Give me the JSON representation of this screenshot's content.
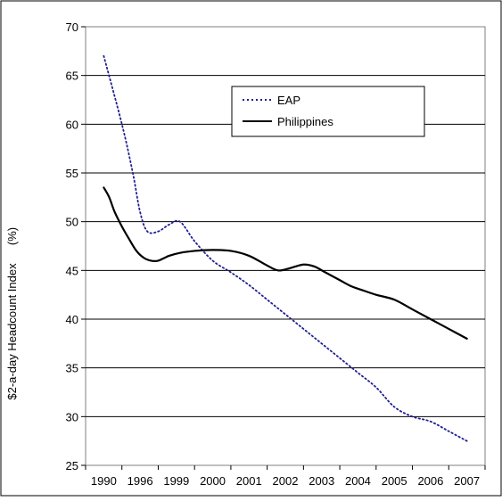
{
  "chart_data": {
    "type": "line",
    "title": "",
    "xlabel": "",
    "ylabel": "$2-a-day Headcount Index",
    "yunit": "(%)",
    "ylim": [
      25,
      70
    ],
    "yticks": [
      "25",
      "30",
      "35",
      "40",
      "45",
      "50",
      "55",
      "60",
      "65",
      "70"
    ],
    "categories": [
      "1990",
      "1996",
      "1999",
      "2000",
      "2001",
      "2002",
      "2003",
      "2004",
      "2005",
      "2006",
      "2007"
    ],
    "grid": "horizontal",
    "legend_position": "top-right",
    "series": [
      {
        "name": "EAP",
        "style": "dotted",
        "color": "#1f1f8f",
        "x": [
          0.5,
          1.0,
          1.3,
          1.5,
          1.7,
          2.0,
          2.3,
          2.6,
          3.0,
          3.5,
          4.0,
          4.5,
          5.0,
          5.5,
          6.0,
          6.5,
          7.0,
          7.5,
          8.0,
          8.5,
          9.0,
          9.5,
          10.0,
          10.5
        ],
        "values": [
          67,
          60,
          55,
          51,
          49,
          49,
          49.7,
          50,
          48,
          46,
          44.8,
          43.5,
          42,
          40.5,
          39,
          37.5,
          36,
          34.5,
          33,
          31,
          30,
          29.5,
          28.5,
          27.5
        ]
      },
      {
        "name": "Philippines",
        "style": "solid",
        "color": "#000000",
        "x": [
          0.5,
          0.65,
          0.8,
          1.0,
          1.2,
          1.4,
          1.6,
          1.8,
          2.0,
          2.3,
          2.6,
          3.0,
          3.5,
          4.0,
          4.5,
          5.0,
          5.3,
          5.6,
          6.0,
          6.3,
          6.6,
          7.0,
          7.3,
          7.6,
          8.0,
          8.5,
          9.0,
          9.5,
          10.0,
          10.5
        ],
        "values": [
          53.5,
          52.5,
          51,
          49.5,
          48.2,
          47,
          46.3,
          46,
          46,
          46.5,
          46.8,
          47,
          47.1,
          47,
          46.5,
          45.5,
          45,
          45.2,
          45.6,
          45.4,
          44.8,
          44,
          43.4,
          43,
          42.5,
          42,
          41,
          40,
          39,
          38
        ]
      }
    ]
  }
}
